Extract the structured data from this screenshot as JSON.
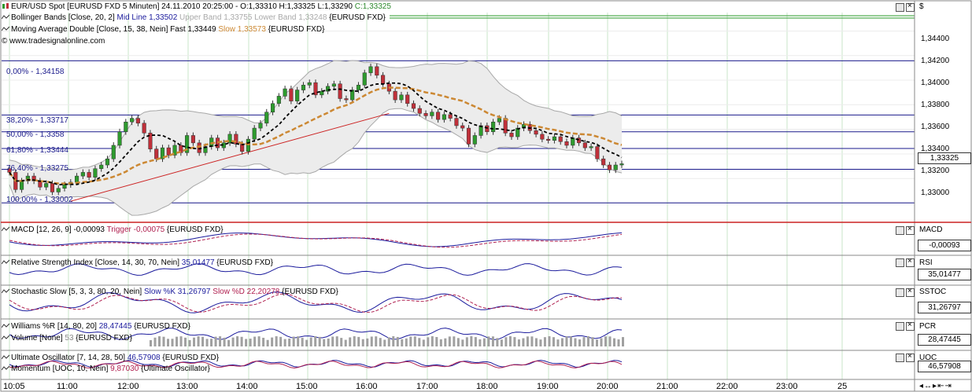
{
  "header": {
    "instrument": "EUR/USD Spot [EURUSD FXD  5 Minuten] 24.11.2010 20:25:00 - O:1,33310 H:1,33325 L:1,33290",
    "close_text": "C:1,33325",
    "bollinger_prefix": "Bollinger Bands [Close, 20, 2]",
    "bollinger_mid": "Mid Line 1,33502",
    "bollinger_bands": "Upper Band 1,33755 Lower Band 1,33248",
    "bollinger_suffix": "{EURUSD FXD}",
    "ma_prefix": "Moving Average Double [Close, 15, 38, Nein]",
    "ma_fast": "Fast 1,33449",
    "ma_slow": "Slow 1,33573",
    "ma_suffix": "{EURUSD FXD}",
    "copyright": "© www.tradesignalonline.com",
    "currency_symbol": "$"
  },
  "colors": {
    "candle_up": "#2e9b2e",
    "candle_down": "#c0303a",
    "bollinger": "#a8a8a8",
    "fast_ma": "#000000",
    "slow_ma": "#cc8833",
    "fib": "#1a1a8c",
    "trend": "#cc2222",
    "grid": "#c8e6c8",
    "sub_line": "#1a1a9c",
    "sub_trigger": "#b02050"
  },
  "fib_labels": [
    "0,00% - 1,34158",
    "38,20% - 1,33717",
    "50,00% - 1,3358",
    "61,80% - 1,33444",
    "76,40% - 1,33275",
    "100,00% - 1,33002"
  ],
  "price_axis": {
    "ticks": [
      "1,34400",
      "1,34200",
      "1,34000",
      "1,33800",
      "1,33600",
      "1,33400",
      "1,33200",
      "1,33000"
    ],
    "last_price": "1,33325"
  },
  "time_axis": [
    "10:05",
    "11:00",
    "12:00",
    "13:00",
    "14:00",
    "15:00",
    "16:00",
    "17:00",
    "18:00",
    "19:00",
    "20:00",
    "21:00",
    "22:00",
    "23:00",
    "25"
  ],
  "panels": {
    "macd": {
      "title": "MACD [12, 26, 9] -0,00093",
      "trigger": "Trigger -0,00075",
      "suffix": "{EURUSD FXD}",
      "axis_name": "MACD",
      "axis_value": "-0,00093"
    },
    "rsi": {
      "title": "Relative Strength Index [Close, 14, 30, 70, Nein]",
      "value": "35,01477",
      "suffix": "{EURUSD FXD}",
      "axis_name": "RSI",
      "axis_value": "35,01477"
    },
    "stoch": {
      "title": "Stochastic Slow [5, 3, 3, 80, 20, Nein]",
      "k": "Slow %K 31,26797",
      "d": "Slow %D 22,20278",
      "suffix": "{EURUSD FXD}",
      "axis_name": "SSTOC",
      "axis_value": "31,26797"
    },
    "williams": {
      "title": "Williams %R [14, 80, 20]",
      "value": "28,47445",
      "suffix": "{EURUSD FXD}",
      "vol_title": "Volume [None]",
      "vol_value": "53",
      "vol_suffix": "{EURUSD FXD}",
      "axis_name": "PCR",
      "axis_value": "28,47445"
    },
    "uo": {
      "title": "Ultimate Oscillator [7, 14, 28, 50]",
      "value": "46,57908",
      "suffix": "{EURUSD FXD}",
      "mom_title": "Momentum [UOC, 10, Nein]",
      "mom_value": "9,87030",
      "mom_suffix": "{Ultimate Oscillator}",
      "axis_name": "UOC",
      "axis_value": "46,57908"
    }
  },
  "chart_data": {
    "type": "candlestick",
    "x_start": "10:05",
    "x_end": "20:25",
    "x_tick_labels": [
      "10:05",
      "11:00",
      "12:00",
      "13:00",
      "14:00",
      "15:00",
      "16:00",
      "17:00",
      "18:00",
      "19:00",
      "20:00",
      "21:00",
      "22:00",
      "23:00",
      "25"
    ],
    "y_range": [
      1.3285,
      1.3455
    ],
    "closes": [
      1.3325,
      1.3311,
      1.3318,
      1.3322,
      1.3318,
      1.3313,
      1.3316,
      1.3309,
      1.3312,
      1.3315,
      1.3317,
      1.3322,
      1.3325,
      1.3321,
      1.3328,
      1.3331,
      1.3336,
      1.3347,
      1.3358,
      1.3366,
      1.3369,
      1.3365,
      1.3357,
      1.3344,
      1.3336,
      1.3345,
      1.3339,
      1.3347,
      1.3341,
      1.3355,
      1.3349,
      1.3341,
      1.3346,
      1.3353,
      1.3345,
      1.3349,
      1.3356,
      1.3348,
      1.3342,
      1.3352,
      1.3361,
      1.3365,
      1.3374,
      1.3381,
      1.3387,
      1.3393,
      1.3383,
      1.3392,
      1.3396,
      1.3398,
      1.3388,
      1.3391,
      1.3395,
      1.3397,
      1.3385,
      1.3384,
      1.3392,
      1.3396,
      1.3406,
      1.3411,
      1.3404,
      1.3397,
      1.3391,
      1.3384,
      1.3388,
      1.3381,
      1.3377,
      1.3373,
      1.3371,
      1.3374,
      1.3368,
      1.3372,
      1.3369,
      1.3363,
      1.3361,
      1.3348,
      1.3355,
      1.3363,
      1.3358,
      1.3366,
      1.3369,
      1.3357,
      1.3354,
      1.3361,
      1.3364,
      1.3359,
      1.3356,
      1.3352,
      1.3351,
      1.3354,
      1.335,
      1.3347,
      1.3353,
      1.3349,
      1.3345,
      1.3346,
      1.3336,
      1.3331,
      1.3327,
      1.3331,
      1.3332
    ],
    "bollinger": {
      "mid": 1.33502,
      "upper": 1.33755,
      "lower": 1.33248
    },
    "moving_average": {
      "fast": 1.33449,
      "slow": 1.33573
    },
    "fibonacci": [
      {
        "label": "0,00%",
        "value": 1.34158
      },
      {
        "label": "38,20%",
        "value": 1.33717
      },
      {
        "label": "50,00%",
        "value": 1.3358
      },
      {
        "label": "61,80%",
        "value": 1.33444
      },
      {
        "label": "76,40%",
        "value": 1.33275
      },
      {
        "label": "100,00%",
        "value": 1.33002
      }
    ],
    "last_close": 1.33325,
    "grid": true
  }
}
